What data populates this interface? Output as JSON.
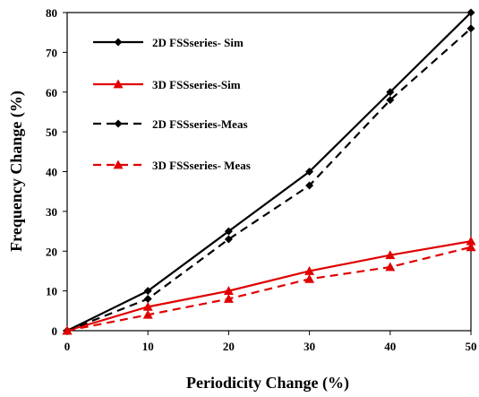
{
  "chart_data": {
    "type": "line",
    "xlabel": "Periodicity  Change (%)",
    "ylabel": "Frequency  Change  (%)",
    "xlim": [
      0,
      50
    ],
    "ylim": [
      0,
      80
    ],
    "x_ticks": [
      "0",
      "10",
      "20",
      "30",
      "40",
      "50"
    ],
    "y_ticks": [
      "0",
      "10",
      "20",
      "30",
      "40",
      "50",
      "60",
      "70",
      "80"
    ],
    "grid": false,
    "legend_position": "top-left",
    "x": [
      0,
      10,
      20,
      30,
      40,
      50
    ],
    "series": [
      {
        "name": "2D FSSseries- Sim",
        "values": [
          0,
          10,
          25,
          40,
          60,
          80
        ],
        "color": "#000000",
        "dash": "solid",
        "marker": "diamond"
      },
      {
        "name": "3D FSSseries-Sim",
        "values": [
          0,
          6,
          10,
          15,
          19,
          22.5
        ],
        "color": "#e00000",
        "dash": "solid",
        "marker": "triangle"
      },
      {
        "name": "2D FSSseries-Meas",
        "values": [
          0,
          8,
          23,
          36.5,
          58,
          76
        ],
        "color": "#000000",
        "dash": "dashed",
        "marker": "diamond"
      },
      {
        "name": "3D FSSseries- Meas",
        "values": [
          0,
          4,
          8,
          13,
          16,
          21
        ],
        "color": "#e00000",
        "dash": "dashed",
        "marker": "triangle"
      }
    ]
  }
}
